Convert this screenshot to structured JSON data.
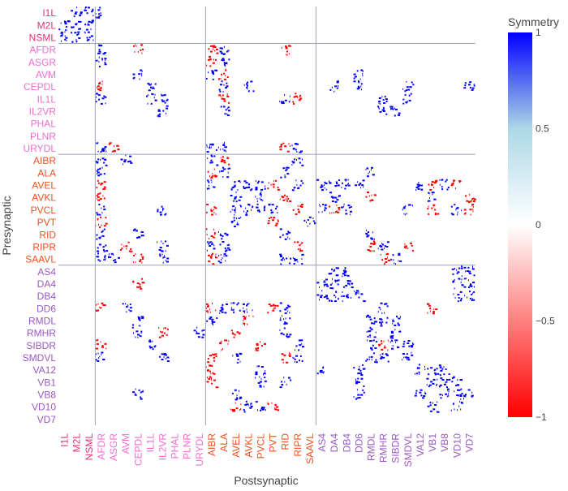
{
  "chart_data": {
    "type": "heatmap",
    "xlabel": "Postsynaptic",
    "ylabel": "Presynaptic",
    "colorbar": {
      "title": "Symmetry",
      "range": [
        -1,
        1
      ],
      "ticks": [
        {
          "value": 1,
          "label": "1"
        },
        {
          "value": 0.5,
          "label": "0.5"
        },
        {
          "value": 0,
          "label": "0"
        },
        {
          "value": -0.5,
          "label": "−0.5"
        },
        {
          "value": -1,
          "label": "−1"
        }
      ],
      "colors": [
        "#ff0000",
        "#ffffff",
        "#add8e6",
        "#0000ff"
      ]
    },
    "group_colors": {
      "pharynx": "#e0317a",
      "sensory": "#f06ed0",
      "inter": "#f0501e",
      "motor": "#9b59c6"
    },
    "row_labels": [
      {
        "label": "I1L",
        "group": "pharynx"
      },
      {
        "label": "M2L",
        "group": "pharynx"
      },
      {
        "label": "NSML",
        "group": "pharynx"
      },
      {
        "label": "AFDR",
        "group": "sensory"
      },
      {
        "label": "ASGR",
        "group": "sensory"
      },
      {
        "label": "AVM",
        "group": "sensory"
      },
      {
        "label": "CEPDL",
        "group": "sensory"
      },
      {
        "label": "IL1L",
        "group": "sensory"
      },
      {
        "label": "IL2VR",
        "group": "sensory"
      },
      {
        "label": "PHAL",
        "group": "sensory"
      },
      {
        "label": "PLNR",
        "group": "sensory"
      },
      {
        "label": "URYDL",
        "group": "sensory"
      },
      {
        "label": "AIBR",
        "group": "inter"
      },
      {
        "label": "ALA",
        "group": "inter"
      },
      {
        "label": "AVEL",
        "group": "inter"
      },
      {
        "label": "AVKL",
        "group": "inter"
      },
      {
        "label": "PVCL",
        "group": "inter"
      },
      {
        "label": "PVT",
        "group": "inter"
      },
      {
        "label": "RID",
        "group": "inter"
      },
      {
        "label": "RIPR",
        "group": "inter"
      },
      {
        "label": "SAAVL",
        "group": "inter"
      },
      {
        "label": "AS4",
        "group": "motor"
      },
      {
        "label": "DA4",
        "group": "motor"
      },
      {
        "label": "DB4",
        "group": "motor"
      },
      {
        "label": "DD6",
        "group": "motor"
      },
      {
        "label": "RMDL",
        "group": "motor"
      },
      {
        "label": "RMHR",
        "group": "motor"
      },
      {
        "label": "SIBDR",
        "group": "motor"
      },
      {
        "label": "SMDVL",
        "group": "motor"
      },
      {
        "label": "VA12",
        "group": "motor"
      },
      {
        "label": "VB1",
        "group": "motor"
      },
      {
        "label": "VB8",
        "group": "motor"
      },
      {
        "label": "VD10",
        "group": "motor"
      },
      {
        "label": "VD7",
        "group": "motor"
      }
    ],
    "col_labels": [
      {
        "label": "I1L",
        "group": "pharynx"
      },
      {
        "label": "M2L",
        "group": "pharynx"
      },
      {
        "label": "NSML",
        "group": "pharynx"
      },
      {
        "label": "AFDR",
        "group": "sensory"
      },
      {
        "label": "ASGR",
        "group": "sensory"
      },
      {
        "label": "AVM",
        "group": "sensory"
      },
      {
        "label": "CEPDL",
        "group": "sensory"
      },
      {
        "label": "IL1L",
        "group": "sensory"
      },
      {
        "label": "IL2VR",
        "group": "sensory"
      },
      {
        "label": "PHAL",
        "group": "sensory"
      },
      {
        "label": "PLNR",
        "group": "sensory"
      },
      {
        "label": "URYDL",
        "group": "sensory"
      },
      {
        "label": "AIBR",
        "group": "inter"
      },
      {
        "label": "ALA",
        "group": "inter"
      },
      {
        "label": "AVEL",
        "group": "inter"
      },
      {
        "label": "AVKL",
        "group": "inter"
      },
      {
        "label": "PVCL",
        "group": "inter"
      },
      {
        "label": "PVT",
        "group": "inter"
      },
      {
        "label": "RID",
        "group": "inter"
      },
      {
        "label": "RIPR",
        "group": "inter"
      },
      {
        "label": "SAAVL",
        "group": "inter"
      },
      {
        "label": "AS4",
        "group": "motor"
      },
      {
        "label": "DA4",
        "group": "motor"
      },
      {
        "label": "DB4",
        "group": "motor"
      },
      {
        "label": "DD6",
        "group": "motor"
      },
      {
        "label": "RMDL",
        "group": "motor"
      },
      {
        "label": "RMHR",
        "group": "motor"
      },
      {
        "label": "SIBDR",
        "group": "motor"
      },
      {
        "label": "SMDVL",
        "group": "motor"
      },
      {
        "label": "VA12",
        "group": "motor"
      },
      {
        "label": "VB1",
        "group": "motor"
      },
      {
        "label": "VB8",
        "group": "motor"
      },
      {
        "label": "VD10",
        "group": "motor"
      },
      {
        "label": "VD7",
        "group": "motor"
      }
    ],
    "cells": [
      [
        0,
        1,
        1
      ],
      [
        0,
        2,
        1
      ],
      [
        0,
        3,
        1
      ],
      [
        1,
        0,
        1
      ],
      [
        1,
        1,
        1
      ],
      [
        1,
        2,
        1
      ],
      [
        2,
        0,
        1
      ],
      [
        2,
        1,
        1
      ],
      [
        2,
        2,
        1
      ],
      [
        3,
        3,
        1
      ],
      [
        3,
        6,
        -1
      ],
      [
        3,
        12,
        -1
      ],
      [
        3,
        13,
        1
      ],
      [
        3,
        18,
        -1
      ],
      [
        4,
        3,
        1
      ],
      [
        4,
        12,
        -1
      ],
      [
        4,
        13,
        1
      ],
      [
        5,
        6,
        1
      ],
      [
        5,
        12,
        1
      ],
      [
        5,
        13,
        -1
      ],
      [
        5,
        24,
        1
      ],
      [
        6,
        3,
        -1
      ],
      [
        6,
        7,
        1
      ],
      [
        6,
        13,
        1
      ],
      [
        6,
        15,
        1
      ],
      [
        6,
        22,
        1
      ],
      [
        6,
        24,
        1
      ],
      [
        6,
        28,
        1
      ],
      [
        6,
        33,
        1
      ],
      [
        7,
        3,
        1
      ],
      [
        7,
        7,
        1
      ],
      [
        7,
        8,
        1
      ],
      [
        7,
        13,
        -1
      ],
      [
        7,
        18,
        1
      ],
      [
        7,
        19,
        -1
      ],
      [
        7,
        26,
        1
      ],
      [
        7,
        28,
        1
      ],
      [
        8,
        8,
        1
      ],
      [
        8,
        13,
        1
      ],
      [
        8,
        26,
        1
      ],
      [
        8,
        27,
        1
      ],
      [
        11,
        3,
        1
      ],
      [
        11,
        4,
        -1
      ],
      [
        11,
        12,
        1
      ],
      [
        11,
        13,
        1
      ],
      [
        11,
        18,
        -1
      ],
      [
        11,
        19,
        1
      ],
      [
        12,
        3,
        1
      ],
      [
        12,
        5,
        1
      ],
      [
        12,
        12,
        1
      ],
      [
        12,
        13,
        -1
      ],
      [
        12,
        19,
        1
      ],
      [
        13,
        3,
        1
      ],
      [
        13,
        12,
        -1
      ],
      [
        13,
        13,
        1
      ],
      [
        13,
        18,
        1
      ],
      [
        13,
        25,
        1
      ],
      [
        14,
        3,
        -1
      ],
      [
        14,
        12,
        1
      ],
      [
        14,
        14,
        1
      ],
      [
        14,
        15,
        1
      ],
      [
        14,
        16,
        1
      ],
      [
        14,
        17,
        -1
      ],
      [
        14,
        19,
        1
      ],
      [
        14,
        21,
        1
      ],
      [
        14,
        22,
        1
      ],
      [
        14,
        23,
        1
      ],
      [
        14,
        24,
        1
      ],
      [
        14,
        29,
        1
      ],
      [
        14,
        30,
        -1
      ],
      [
        14,
        31,
        1
      ],
      [
        14,
        32,
        -1
      ],
      [
        15,
        3,
        -1
      ],
      [
        15,
        14,
        1
      ],
      [
        15,
        16,
        1
      ],
      [
        15,
        18,
        -1
      ],
      [
        15,
        22,
        1
      ],
      [
        15,
        25,
        -1
      ],
      [
        15,
        30,
        1
      ],
      [
        15,
        33,
        -1
      ],
      [
        16,
        3,
        1
      ],
      [
        16,
        8,
        1
      ],
      [
        16,
        12,
        -1
      ],
      [
        16,
        14,
        1
      ],
      [
        16,
        15,
        1
      ],
      [
        16,
        16,
        1
      ],
      [
        16,
        17,
        1
      ],
      [
        16,
        19,
        -1
      ],
      [
        16,
        21,
        1
      ],
      [
        16,
        22,
        -1
      ],
      [
        16,
        23,
        1
      ],
      [
        16,
        28,
        1
      ],
      [
        16,
        30,
        -1
      ],
      [
        16,
        32,
        1
      ],
      [
        16,
        33,
        -1
      ],
      [
        17,
        3,
        -1
      ],
      [
        17,
        14,
        1
      ],
      [
        17,
        17,
        -1
      ],
      [
        17,
        20,
        1
      ],
      [
        18,
        3,
        1
      ],
      [
        18,
        6,
        1
      ],
      [
        18,
        12,
        -1
      ],
      [
        18,
        13,
        1
      ],
      [
        18,
        18,
        1
      ],
      [
        18,
        25,
        1
      ],
      [
        19,
        3,
        1
      ],
      [
        19,
        5,
        -1
      ],
      [
        19,
        8,
        1
      ],
      [
        19,
        12,
        1
      ],
      [
        19,
        13,
        1
      ],
      [
        19,
        19,
        -1
      ],
      [
        19,
        25,
        -1
      ],
      [
        19,
        26,
        1
      ],
      [
        19,
        28,
        -1
      ],
      [
        20,
        3,
        1
      ],
      [
        20,
        4,
        1
      ],
      [
        20,
        6,
        -1
      ],
      [
        20,
        8,
        1
      ],
      [
        20,
        12,
        -1
      ],
      [
        20,
        13,
        1
      ],
      [
        20,
        18,
        1
      ],
      [
        20,
        19,
        1
      ],
      [
        20,
        26,
        -1
      ],
      [
        20,
        27,
        1
      ],
      [
        21,
        22,
        1
      ],
      [
        21,
        23,
        1
      ],
      [
        21,
        32,
        1
      ],
      [
        21,
        33,
        1
      ],
      [
        22,
        6,
        -1
      ],
      [
        22,
        21,
        1
      ],
      [
        22,
        22,
        1
      ],
      [
        22,
        23,
        1
      ],
      [
        22,
        32,
        1
      ],
      [
        22,
        33,
        1
      ],
      [
        23,
        21,
        1
      ],
      [
        23,
        22,
        1
      ],
      [
        23,
        23,
        1
      ],
      [
        23,
        24,
        1
      ],
      [
        23,
        32,
        1
      ],
      [
        23,
        33,
        1
      ],
      [
        24,
        3,
        -1
      ],
      [
        24,
        5,
        1
      ],
      [
        24,
        12,
        -1
      ],
      [
        24,
        13,
        1
      ],
      [
        24,
        14,
        1
      ],
      [
        24,
        15,
        1
      ],
      [
        24,
        17,
        -1
      ],
      [
        24,
        18,
        1
      ],
      [
        24,
        26,
        1
      ],
      [
        24,
        30,
        -1
      ],
      [
        25,
        6,
        1
      ],
      [
        25,
        12,
        1
      ],
      [
        25,
        15,
        -1
      ],
      [
        25,
        18,
        1
      ],
      [
        25,
        25,
        1
      ],
      [
        25,
        26,
        1
      ],
      [
        25,
        27,
        1
      ],
      [
        26,
        6,
        1
      ],
      [
        26,
        8,
        -1
      ],
      [
        26,
        11,
        1
      ],
      [
        26,
        14,
        -1
      ],
      [
        26,
        18,
        1
      ],
      [
        26,
        25,
        1
      ],
      [
        26,
        27,
        1
      ],
      [
        27,
        3,
        -1
      ],
      [
        27,
        7,
        1
      ],
      [
        27,
        13,
        -1
      ],
      [
        27,
        16,
        -1
      ],
      [
        27,
        19,
        1
      ],
      [
        27,
        25,
        1
      ],
      [
        27,
        26,
        -1
      ],
      [
        27,
        27,
        1
      ],
      [
        27,
        28,
        1
      ],
      [
        28,
        3,
        1
      ],
      [
        28,
        8,
        1
      ],
      [
        28,
        12,
        -1
      ],
      [
        28,
        14,
        1
      ],
      [
        28,
        18,
        -1
      ],
      [
        28,
        19,
        1
      ],
      [
        28,
        25,
        1
      ],
      [
        28,
        26,
        1
      ],
      [
        28,
        28,
        1
      ],
      [
        29,
        12,
        -1
      ],
      [
        29,
        16,
        1
      ],
      [
        29,
        21,
        1
      ],
      [
        29,
        24,
        1
      ],
      [
        29,
        29,
        1
      ],
      [
        29,
        30,
        1
      ],
      [
        29,
        31,
        1
      ],
      [
        30,
        12,
        -1
      ],
      [
        30,
        16,
        1
      ],
      [
        30,
        18,
        1
      ],
      [
        30,
        24,
        1
      ],
      [
        30,
        30,
        1
      ],
      [
        30,
        31,
        1
      ],
      [
        30,
        32,
        1
      ],
      [
        31,
        6,
        1
      ],
      [
        31,
        14,
        1
      ],
      [
        31,
        24,
        1
      ],
      [
        31,
        29,
        1
      ],
      [
        31,
        31,
        1
      ],
      [
        31,
        32,
        1
      ],
      [
        31,
        33,
        1
      ],
      [
        32,
        14,
        -1
      ],
      [
        32,
        15,
        1
      ],
      [
        32,
        16,
        1
      ],
      [
        32,
        17,
        -1
      ],
      [
        32,
        30,
        1
      ],
      [
        32,
        32,
        1
      ]
    ]
  }
}
